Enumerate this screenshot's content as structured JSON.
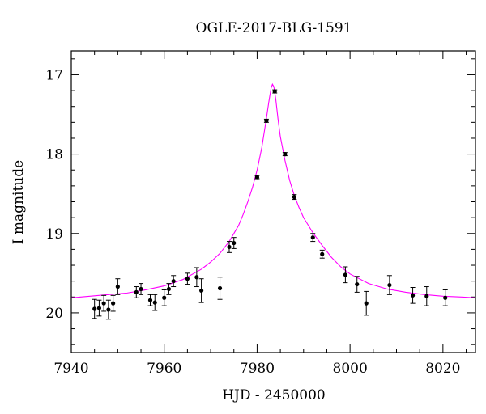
{
  "chart_data": {
    "type": "scatter",
    "title": "OGLE-2017-BLG-1591",
    "xlabel": "HJD - 2450000",
    "ylabel": "I magnitude",
    "xlim": [
      7940,
      8027
    ],
    "ylim": [
      20.5,
      16.7
    ],
    "y_inverted": true,
    "x_ticks": [
      7940,
      7960,
      7980,
      8000,
      8020
    ],
    "y_ticks": [
      17,
      18,
      19,
      20
    ],
    "x_ticklabels": [
      "7940",
      "7960",
      "7980",
      "8000",
      "8020"
    ],
    "y_ticklabels": [
      "17",
      "18",
      "19",
      "20"
    ],
    "grid": false,
    "marker_color": "#000000",
    "model_color": "#ff00ff",
    "series": [
      {
        "points": [
          {
            "x": 7945.0,
            "y": 19.95,
            "err": 0.12
          },
          {
            "x": 7946.0,
            "y": 19.94,
            "err": 0.1
          },
          {
            "x": 7947.0,
            "y": 19.88,
            "err": 0.1
          },
          {
            "x": 7948.0,
            "y": 19.96,
            "err": 0.12
          },
          {
            "x": 7949.0,
            "y": 19.88,
            "err": 0.1
          },
          {
            "x": 7950.0,
            "y": 19.67,
            "err": 0.1
          },
          {
            "x": 7954.0,
            "y": 19.74,
            "err": 0.07
          },
          {
            "x": 7955.0,
            "y": 19.7,
            "err": 0.07
          },
          {
            "x": 7957.0,
            "y": 19.84,
            "err": 0.07
          },
          {
            "x": 7958.0,
            "y": 19.87,
            "err": 0.1
          },
          {
            "x": 7960.0,
            "y": 19.81,
            "err": 0.1
          },
          {
            "x": 7961.0,
            "y": 19.7,
            "err": 0.07
          },
          {
            "x": 7962.0,
            "y": 19.6,
            "err": 0.07
          },
          {
            "x": 7965.0,
            "y": 19.57,
            "err": 0.07
          },
          {
            "x": 7967.0,
            "y": 19.55,
            "err": 0.12
          },
          {
            "x": 7968.0,
            "y": 19.72,
            "err": 0.15
          },
          {
            "x": 7972.0,
            "y": 19.69,
            "err": 0.14
          },
          {
            "x": 7974.0,
            "y": 19.17,
            "err": 0.07
          },
          {
            "x": 7975.0,
            "y": 19.12,
            "err": 0.07
          },
          {
            "x": 7980.0,
            "y": 18.29,
            "err": 0.02
          },
          {
            "x": 7982.0,
            "y": 17.58,
            "err": 0.02
          },
          {
            "x": 7983.8,
            "y": 17.21,
            "err": 0.02
          },
          {
            "x": 7986.0,
            "y": 18.0,
            "err": 0.02
          },
          {
            "x": 7988.0,
            "y": 18.54,
            "err": 0.03
          },
          {
            "x": 7992.0,
            "y": 19.05,
            "err": 0.05
          },
          {
            "x": 7994.0,
            "y": 19.26,
            "err": 0.05
          },
          {
            "x": 7999.0,
            "y": 19.52,
            "err": 0.1
          },
          {
            "x": 8001.5,
            "y": 19.64,
            "err": 0.1
          },
          {
            "x": 8003.5,
            "y": 19.88,
            "err": 0.15
          },
          {
            "x": 8008.5,
            "y": 19.65,
            "err": 0.12
          },
          {
            "x": 8013.5,
            "y": 19.78,
            "err": 0.1
          },
          {
            "x": 8016.5,
            "y": 19.79,
            "err": 0.12
          },
          {
            "x": 8020.5,
            "y": 19.81,
            "err": 0.1
          }
        ]
      }
    ],
    "model": {
      "type": "line",
      "x": [
        7940,
        7944,
        7948,
        7952,
        7956,
        7960,
        7964,
        7968,
        7970,
        7972,
        7974,
        7976,
        7977,
        7978,
        7979,
        7980,
        7981,
        7982,
        7982.5,
        7983,
        7983.3,
        7983.6,
        7984,
        7984.5,
        7985,
        7986,
        7987,
        7988,
        7989,
        7990,
        7992,
        7994,
        7996,
        7998,
        8000,
        8004,
        8008,
        8012,
        8016,
        8020,
        8024,
        8027
      ],
      "y": [
        19.81,
        19.79,
        19.77,
        19.75,
        19.71,
        19.66,
        19.58,
        19.45,
        19.36,
        19.25,
        19.1,
        18.9,
        18.76,
        18.6,
        18.42,
        18.2,
        17.92,
        17.55,
        17.35,
        17.17,
        17.12,
        17.15,
        17.3,
        17.56,
        17.78,
        18.08,
        18.33,
        18.52,
        18.67,
        18.8,
        18.99,
        19.15,
        19.3,
        19.42,
        19.51,
        19.63,
        19.7,
        19.74,
        19.77,
        19.79,
        19.8,
        19.81
      ]
    }
  }
}
